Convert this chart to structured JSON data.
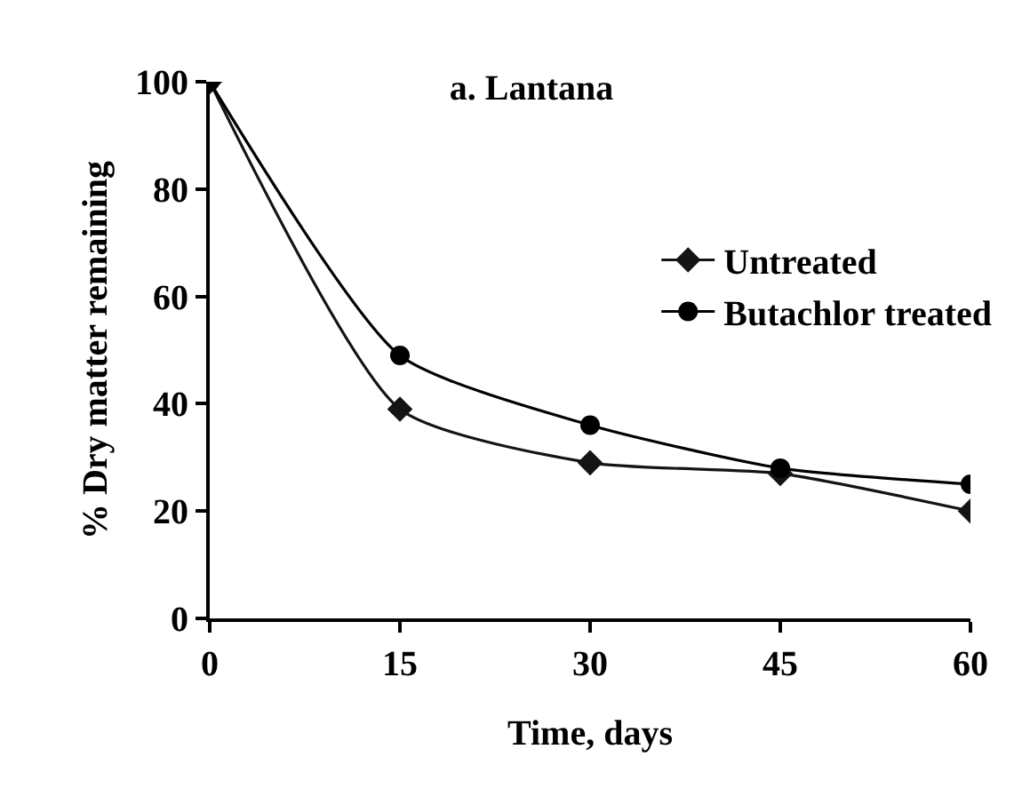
{
  "chart_data": {
    "type": "line",
    "title": "a. Lantana",
    "xlabel": "Time, days",
    "ylabel": "% Dry matter remaining",
    "x": [
      0,
      15,
      30,
      45,
      60
    ],
    "series": [
      {
        "name": "Untreated",
        "color": "#141414",
        "marker": "diamond",
        "values": [
          100,
          39,
          29,
          27,
          20
        ]
      },
      {
        "name": "Butachlor treated",
        "color": "#000000",
        "marker": "circle",
        "values": [
          100,
          49,
          36,
          28,
          25
        ]
      }
    ],
    "xlim": [
      0,
      60
    ],
    "xticks": [
      0,
      15,
      30,
      45,
      60
    ],
    "ylim": [
      0,
      100
    ],
    "yticks": [
      0,
      20,
      40,
      60,
      80,
      100
    ],
    "grid": false,
    "legend": "right",
    "line_style": "solid"
  }
}
